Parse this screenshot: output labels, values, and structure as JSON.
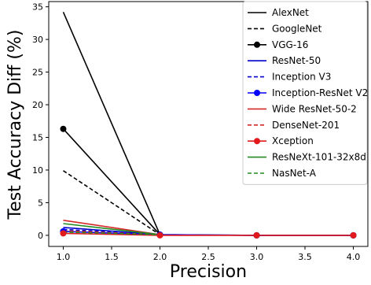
{
  "chart_data": {
    "type": "line",
    "xlabel": "Precision",
    "ylabel": "Test Accuracy Diff (%)",
    "xlim": [
      0.85,
      4.15
    ],
    "ylim": [
      -1.7,
      35.8
    ],
    "x_ticks": [
      1.0,
      1.5,
      2.0,
      2.5,
      3.0,
      3.5,
      4.0
    ],
    "y_ticks": [
      0,
      5,
      10,
      15,
      20,
      25,
      30,
      35
    ],
    "grid": false,
    "legend_position": "upper-right",
    "series": [
      {
        "name": "AlexNet",
        "color": "#000000",
        "dash": "solid",
        "marker": false,
        "x": [
          1,
          2
        ],
        "y": [
          34.2,
          0.1
        ]
      },
      {
        "name": "GoogleNet",
        "color": "#000000",
        "dash": "dashed",
        "marker": false,
        "x": [
          1,
          2
        ],
        "y": [
          9.9,
          0.1
        ]
      },
      {
        "name": "VGG-16",
        "color": "#000000",
        "dash": "solid",
        "marker": true,
        "x": [
          1,
          2,
          3,
          4
        ],
        "y": [
          16.3,
          0.1,
          0.0,
          0.0
        ]
      },
      {
        "name": "ResNet-50",
        "color": "#0000cc",
        "dash": "solid",
        "marker": false,
        "x": [
          1,
          2
        ],
        "y": [
          1.2,
          0.1
        ]
      },
      {
        "name": "Inception V3",
        "color": "#0000cc",
        "dash": "dashed",
        "marker": false,
        "x": [
          1,
          2
        ],
        "y": [
          0.9,
          0.1
        ]
      },
      {
        "name": "Inception-ResNet V2",
        "color": "#0000ff",
        "dash": "solid",
        "marker": true,
        "x": [
          1,
          2,
          3,
          4
        ],
        "y": [
          0.6,
          0.1,
          0.0,
          0.0
        ]
      },
      {
        "name": "Wide ResNet-50-2",
        "color": "#d62728",
        "dash": "solid",
        "marker": false,
        "x": [
          1,
          2
        ],
        "y": [
          2.3,
          0.1
        ]
      },
      {
        "name": "DenseNet-201",
        "color": "#d62728",
        "dash": "dashed",
        "marker": false,
        "x": [
          1,
          2
        ],
        "y": [
          0.7,
          0.1
        ]
      },
      {
        "name": "Xception",
        "color": "#e31a1c",
        "dash": "solid",
        "marker": true,
        "x": [
          1,
          2,
          3,
          4
        ],
        "y": [
          0.3,
          0.0,
          0.0,
          0.0
        ]
      },
      {
        "name": "ResNeXt-101-32x8d",
        "color": "#228b22",
        "dash": "solid",
        "marker": false,
        "x": [
          1,
          2
        ],
        "y": [
          1.8,
          0.1
        ]
      },
      {
        "name": "NasNet-A",
        "color": "#228b22",
        "dash": "dashed",
        "marker": false,
        "x": [
          1,
          2
        ],
        "y": [
          0.5,
          0.1
        ]
      }
    ]
  }
}
